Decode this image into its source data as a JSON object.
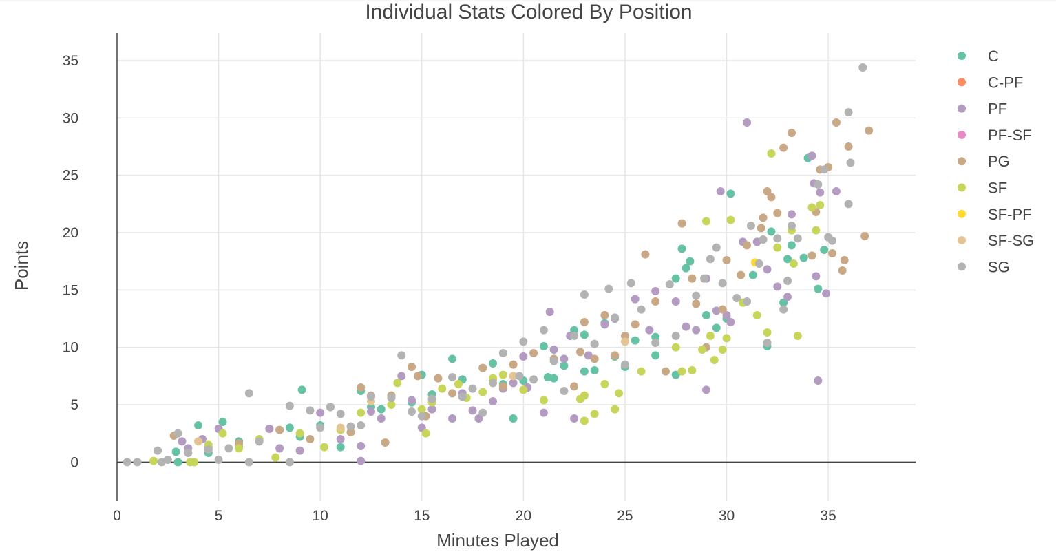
{
  "chart_data": {
    "type": "scatter",
    "title": "Individual Stats Colored By Position",
    "xlabel": "Minutes Played",
    "ylabel": "Points",
    "xlim": [
      0,
      39.3
    ],
    "ylim": [
      -3.4,
      37.4
    ],
    "x_ticks": [
      0,
      5,
      10,
      15,
      20,
      25,
      30,
      35
    ],
    "y_ticks": [
      0,
      5,
      10,
      15,
      20,
      25,
      30,
      35
    ],
    "grid": true,
    "legend_position": "right",
    "marker": "circle",
    "series": [
      {
        "name": "C",
        "color": "#66c2a5",
        "points": [
          [
            2.9,
            0.9
          ],
          [
            3.0,
            0
          ],
          [
            4.0,
            3.2
          ],
          [
            4.5,
            0.8
          ],
          [
            5.2,
            3.5
          ],
          [
            6.0,
            1.8
          ],
          [
            8.5,
            3.0
          ],
          [
            9.0,
            2.2
          ],
          [
            9.1,
            6.3
          ],
          [
            10.0,
            3.2
          ],
          [
            11.0,
            1.3
          ],
          [
            12.0,
            6.2
          ],
          [
            13.0,
            4.6
          ],
          [
            14.5,
            5.2
          ],
          [
            15.0,
            7.6
          ],
          [
            15.5,
            5.9
          ],
          [
            16.5,
            9.0
          ],
          [
            17.0,
            7.2
          ],
          [
            18.0,
            8.2
          ],
          [
            18.5,
            8.6
          ],
          [
            19.0,
            6.8
          ],
          [
            19.5,
            3.8
          ],
          [
            20.0,
            7.1
          ],
          [
            21.0,
            10.1
          ],
          [
            21.5,
            7.3
          ],
          [
            22.0,
            8.4
          ],
          [
            22.5,
            11.5
          ],
          [
            23.0,
            7.9
          ],
          [
            23.0,
            11.1
          ],
          [
            23.5,
            8.0
          ],
          [
            24.0,
            12.1
          ],
          [
            24.5,
            9.2
          ],
          [
            25.0,
            8.3
          ],
          [
            25.5,
            10.6
          ],
          [
            26.5,
            9.3
          ],
          [
            26.5,
            10.9
          ],
          [
            27.5,
            7.6
          ],
          [
            27.5,
            16.0
          ],
          [
            27.8,
            18.6
          ],
          [
            28.0,
            16.9
          ],
          [
            28.2,
            17.5
          ],
          [
            29.0,
            12.8
          ],
          [
            29.5,
            11.7
          ],
          [
            30.0,
            12.5
          ],
          [
            30.2,
            23.4
          ],
          [
            31.3,
            16.3
          ],
          [
            32.0,
            10.1
          ],
          [
            32.2,
            20.1
          ],
          [
            32.8,
            13.9
          ],
          [
            33.0,
            17.7
          ],
          [
            33.2,
            18.9
          ],
          [
            33.8,
            17.8
          ],
          [
            34.0,
            26.5
          ],
          [
            34.5,
            15.1
          ],
          [
            34.8,
            18.5
          ],
          [
            12.5,
            4.8
          ],
          [
            21.2,
            7.4
          ]
        ]
      },
      {
        "name": "C-PF",
        "color": "#fc8d62",
        "points": []
      },
      {
        "name": "PF",
        "color": "#b39bc1",
        "points": [
          [
            3.2,
            1.8
          ],
          [
            3.5,
            1.2
          ],
          [
            4.2,
            2.0
          ],
          [
            5.0,
            2.9
          ],
          [
            6.0,
            1.3
          ],
          [
            7.5,
            2.9
          ],
          [
            8.0,
            1.2
          ],
          [
            9.0,
            1.0
          ],
          [
            10.0,
            4.3
          ],
          [
            11.0,
            2.0
          ],
          [
            12.0,
            0.1
          ],
          [
            12.0,
            1.4
          ],
          [
            12.5,
            4.4
          ],
          [
            13.0,
            3.8
          ],
          [
            14.0,
            7.5
          ],
          [
            14.5,
            5.4
          ],
          [
            15.0,
            3.0
          ],
          [
            15.5,
            4.6
          ],
          [
            16.5,
            3.8
          ],
          [
            17.0,
            6.0
          ],
          [
            17.5,
            4.5
          ],
          [
            17.8,
            3.8
          ],
          [
            18.5,
            5.3
          ],
          [
            19.0,
            6.4
          ],
          [
            19.5,
            6.9
          ],
          [
            20.0,
            9.2
          ],
          [
            20.2,
            6.5
          ],
          [
            21.0,
            4.3
          ],
          [
            21.3,
            13.1
          ],
          [
            21.5,
            9.8
          ],
          [
            22.0,
            9.0
          ],
          [
            22.3,
            11.0
          ],
          [
            22.5,
            3.8
          ],
          [
            23.2,
            9.3
          ],
          [
            24.0,
            12.0
          ],
          [
            24.5,
            12.5
          ],
          [
            25.5,
            14.2
          ],
          [
            26.2,
            11.5
          ],
          [
            26.5,
            14.9
          ],
          [
            27.5,
            14.0
          ],
          [
            28.0,
            11.8
          ],
          [
            28.5,
            11.5
          ],
          [
            29.0,
            16.0
          ],
          [
            29.0,
            6.3
          ],
          [
            29.5,
            13.2
          ],
          [
            29.7,
            23.6
          ],
          [
            30.0,
            12.8
          ],
          [
            30.2,
            12.2
          ],
          [
            30.8,
            19.2
          ],
          [
            31.0,
            29.6
          ],
          [
            31.5,
            19.2
          ],
          [
            32.0,
            16.8
          ],
          [
            32.5,
            15.3
          ],
          [
            33.0,
            14.4
          ],
          [
            33.2,
            21.6
          ],
          [
            34.2,
            26.7
          ],
          [
            34.3,
            24.3
          ],
          [
            34.4,
            16.2
          ],
          [
            34.5,
            7.1
          ],
          [
            34.6,
            23.5
          ],
          [
            34.9,
            14.7
          ],
          [
            35.4,
            23.6
          ]
        ]
      },
      {
        "name": "PF-SF",
        "color": "#e78ac3",
        "points": []
      },
      {
        "name": "PG",
        "color": "#c9a885",
        "points": [
          [
            2.8,
            2.3
          ],
          [
            4.5,
            1.3
          ],
          [
            6.0,
            1.6
          ],
          [
            8.0,
            2.8
          ],
          [
            9.5,
            2.0
          ],
          [
            10.5,
            4.8
          ],
          [
            11.5,
            2.6
          ],
          [
            12.0,
            6.5
          ],
          [
            12.5,
            5.8
          ],
          [
            13.2,
            1.7
          ],
          [
            13.5,
            5.8
          ],
          [
            14.5,
            8.3
          ],
          [
            14.8,
            7.5
          ],
          [
            15.8,
            7.3
          ],
          [
            16.5,
            6.0
          ],
          [
            18.0,
            8.2
          ],
          [
            18.5,
            7.2
          ],
          [
            19.0,
            6.6
          ],
          [
            19.5,
            8.5
          ],
          [
            20.5,
            9.5
          ],
          [
            21.5,
            9.0
          ],
          [
            22.5,
            6.6
          ],
          [
            23.0,
            12.2
          ],
          [
            23.5,
            9.0
          ],
          [
            24.0,
            12.8
          ],
          [
            24.5,
            9.3
          ],
          [
            25.0,
            11.0
          ],
          [
            25.5,
            12.0
          ],
          [
            26.0,
            18.1
          ],
          [
            26.5,
            14.0
          ],
          [
            27.0,
            7.9
          ],
          [
            27.8,
            20.8
          ],
          [
            28.3,
            16.0
          ],
          [
            28.5,
            13.8
          ],
          [
            29.0,
            10.0
          ],
          [
            29.8,
            13.3
          ],
          [
            30.0,
            17.6
          ],
          [
            30.7,
            16.3
          ],
          [
            31.0,
            18.9
          ],
          [
            31.7,
            20.4
          ],
          [
            31.8,
            21.3
          ],
          [
            32.0,
            23.6
          ],
          [
            32.2,
            23.1
          ],
          [
            32.5,
            21.7
          ],
          [
            32.8,
            27.4
          ],
          [
            33.2,
            28.7
          ],
          [
            34.2,
            18.0
          ],
          [
            34.4,
            21.8
          ],
          [
            34.6,
            25.5
          ],
          [
            35.0,
            25.7
          ],
          [
            35.2,
            18.2
          ],
          [
            35.4,
            29.6
          ],
          [
            35.7,
            16.7
          ],
          [
            35.8,
            17.6
          ],
          [
            36.0,
            27.5
          ],
          [
            36.8,
            19.7
          ],
          [
            37.0,
            28.9
          ],
          [
            15.2,
            4.0
          ],
          [
            22.8,
            9.6
          ]
        ]
      },
      {
        "name": "SF",
        "color": "#c7d65a",
        "points": [
          [
            1.8,
            0.1
          ],
          [
            3.6,
            0
          ],
          [
            3.8,
            0
          ],
          [
            4.5,
            1.5
          ],
          [
            5.2,
            2.5
          ],
          [
            6.0,
            1.2
          ],
          [
            7.0,
            2.0
          ],
          [
            7.8,
            0.4
          ],
          [
            9.0,
            2.5
          ],
          [
            10.2,
            1.3
          ],
          [
            11.0,
            2.8
          ],
          [
            12.0,
            4.3
          ],
          [
            13.5,
            5.0
          ],
          [
            13.8,
            6.9
          ],
          [
            15.0,
            4.6
          ],
          [
            15.2,
            2.5
          ],
          [
            16.0,
            6.4
          ],
          [
            16.8,
            6.8
          ],
          [
            17.2,
            5.6
          ],
          [
            18.0,
            6.1
          ],
          [
            18.5,
            7.3
          ],
          [
            19.0,
            7.6
          ],
          [
            20.0,
            6.3
          ],
          [
            21.0,
            5.4
          ],
          [
            22.8,
            5.5
          ],
          [
            23.0,
            5.8
          ],
          [
            23.0,
            3.6
          ],
          [
            23.5,
            4.2
          ],
          [
            24.0,
            6.8
          ],
          [
            24.5,
            4.6
          ],
          [
            24.7,
            6.0
          ],
          [
            25.8,
            7.9
          ],
          [
            27.5,
            10.0
          ],
          [
            27.8,
            7.9
          ],
          [
            28.3,
            8.0
          ],
          [
            28.8,
            9.8
          ],
          [
            29.0,
            21.0
          ],
          [
            29.2,
            11.0
          ],
          [
            29.4,
            8.9
          ],
          [
            29.8,
            9.8
          ],
          [
            30.0,
            10.8
          ],
          [
            30.2,
            21.1
          ],
          [
            30.8,
            13.9
          ],
          [
            31.5,
            12.8
          ],
          [
            32.0,
            11.3
          ],
          [
            32.2,
            26.9
          ],
          [
            32.5,
            18.7
          ],
          [
            33.2,
            20.2
          ],
          [
            33.3,
            17.3
          ],
          [
            33.5,
            11.0
          ],
          [
            34.2,
            22.2
          ],
          [
            34.4,
            20.2
          ],
          [
            34.6,
            22.4
          ],
          [
            15.5,
            5.2
          ]
        ]
      },
      {
        "name": "SF-PF",
        "color": "#ffd92f",
        "points": [
          [
            31.4,
            17.4
          ]
        ]
      },
      {
        "name": "SF-SG",
        "color": "#e5c494",
        "points": [
          [
            4.0,
            1.8
          ],
          [
            11.0,
            3.0
          ],
          [
            12.5,
            5.3
          ],
          [
            19.5,
            7.5
          ],
          [
            25.0,
            10.5
          ]
        ]
      },
      {
        "name": "SG",
        "color": "#b3b3b3",
        "points": [
          [
            0.5,
            0
          ],
          [
            1.0,
            0
          ],
          [
            2.0,
            1.0
          ],
          [
            2.2,
            0
          ],
          [
            2.5,
            0.2
          ],
          [
            3.0,
            2.5
          ],
          [
            3.5,
            0.8
          ],
          [
            4.5,
            1.1
          ],
          [
            5.0,
            0.2
          ],
          [
            5.5,
            1.2
          ],
          [
            6.5,
            6.0
          ],
          [
            6.5,
            0
          ],
          [
            7.0,
            1.8
          ],
          [
            8.5,
            4.9
          ],
          [
            8.5,
            0
          ],
          [
            9.5,
            4.5
          ],
          [
            10.0,
            3.0
          ],
          [
            10.5,
            4.8
          ],
          [
            11.0,
            4.2
          ],
          [
            11.5,
            3.1
          ],
          [
            12.0,
            3.2
          ],
          [
            12.5,
            5.7
          ],
          [
            13.5,
            5.6
          ],
          [
            14.0,
            9.3
          ],
          [
            14.5,
            4.4
          ],
          [
            15.0,
            4.0
          ],
          [
            15.5,
            5.5
          ],
          [
            16.5,
            7.4
          ],
          [
            17.0,
            5.7
          ],
          [
            17.5,
            6.4
          ],
          [
            18.0,
            4.3
          ],
          [
            18.5,
            6.9
          ],
          [
            19.0,
            9.5
          ],
          [
            19.8,
            7.5
          ],
          [
            20.0,
            10.5
          ],
          [
            20.5,
            7.2
          ],
          [
            21.0,
            11.5
          ],
          [
            21.5,
            8.8
          ],
          [
            22.0,
            6.2
          ],
          [
            22.5,
            11.0
          ],
          [
            23.0,
            14.6
          ],
          [
            23.5,
            10.3
          ],
          [
            24.2,
            15.1
          ],
          [
            24.5,
            12.6
          ],
          [
            25.0,
            8.5
          ],
          [
            25.3,
            15.6
          ],
          [
            25.8,
            13.3
          ],
          [
            26.5,
            10.4
          ],
          [
            27.2,
            15.5
          ],
          [
            27.5,
            11.0
          ],
          [
            28.5,
            14.5
          ],
          [
            28.9,
            16.0
          ],
          [
            29.2,
            17.7
          ],
          [
            29.5,
            18.7
          ],
          [
            29.8,
            15.6
          ],
          [
            30.5,
            14.3
          ],
          [
            31.0,
            14.0
          ],
          [
            31.2,
            20.6
          ],
          [
            31.6,
            17.3
          ],
          [
            31.8,
            19.4
          ],
          [
            32.0,
            10.4
          ],
          [
            32.5,
            19.5
          ],
          [
            32.8,
            13.3
          ],
          [
            33.0,
            15.8
          ],
          [
            33.2,
            20.6
          ],
          [
            33.5,
            19.5
          ],
          [
            34.5,
            24.2
          ],
          [
            34.8,
            25.5
          ],
          [
            35.0,
            19.6
          ],
          [
            35.2,
            19.3
          ],
          [
            36.0,
            22.5
          ],
          [
            36.0,
            30.5
          ],
          [
            36.1,
            26.1
          ],
          [
            36.7,
            34.4
          ]
        ]
      }
    ]
  }
}
